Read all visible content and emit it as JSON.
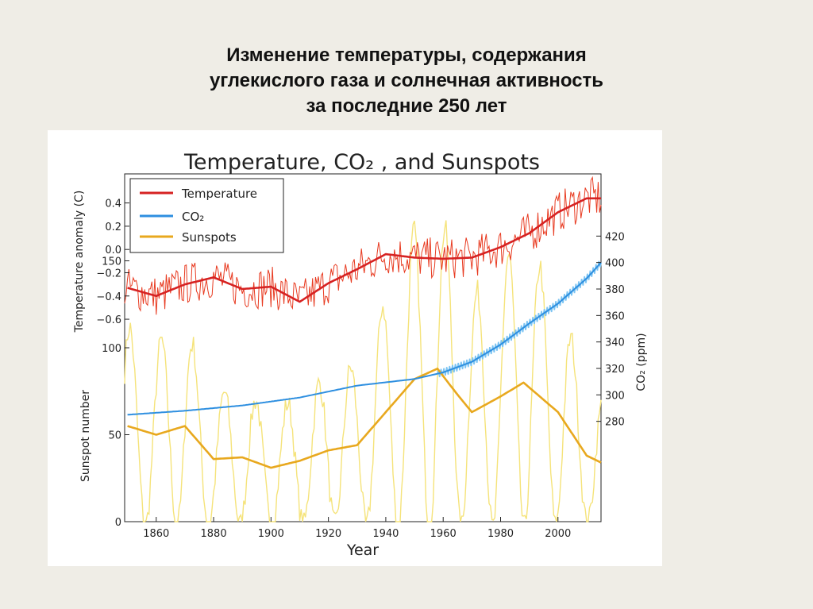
{
  "slide": {
    "title_lines": [
      "Изменение температуры, содержания",
      "углекислого газа и солнечная активность",
      "за последние 250 лет"
    ]
  },
  "chart_data": {
    "type": "line",
    "title": "Temperature, CO₂ , and Sunspots",
    "xlabel": "Year",
    "xlim": [
      1849,
      2015
    ],
    "x_ticks": [
      1860,
      1880,
      1900,
      1920,
      1940,
      1960,
      1980,
      2000
    ],
    "grid": false,
    "legend_position": "top-left",
    "legend": [
      "Temperature",
      "CO₂",
      "Sunspots"
    ],
    "axes": {
      "temperature": {
        "label": "Temperature anomaly (C)",
        "ticks": [
          "0.4",
          "0.2",
          "0.0",
          "−0.2",
          "−0.4",
          "−0.6"
        ],
        "ylim": [
          -0.9,
          0.65
        ],
        "side": "left-top"
      },
      "sunspots": {
        "label": "Sunspot number",
        "ticks": [
          "0",
          "50",
          "100",
          "150"
        ],
        "ylim": [
          0,
          200
        ],
        "side": "left-bottom"
      },
      "co2": {
        "label": "CO₂ (ppm)",
        "ticks": [
          "280",
          "300",
          "320",
          "340",
          "360",
          "380",
          "400",
          "420"
        ],
        "ylim": [
          230,
          425
        ],
        "side": "right"
      }
    },
    "colors": {
      "temperature": "#d62222",
      "temperature_raw": "#e83a20",
      "co2": "#2e8fe0",
      "co2_raw": "#7cc4f2",
      "sunspots": "#e8a81e",
      "sunspots_raw": "#f5e37a"
    },
    "series": [
      {
        "name": "Temperature",
        "axis": "temperature",
        "x": [
          1850,
          1860,
          1870,
          1880,
          1890,
          1900,
          1910,
          1920,
          1930,
          1940,
          1950,
          1960,
          1970,
          1980,
          1990,
          2000,
          2010,
          2015
        ],
        "values": [
          -0.33,
          -0.4,
          -0.3,
          -0.24,
          -0.34,
          -0.32,
          -0.45,
          -0.29,
          -0.17,
          -0.04,
          -0.07,
          -0.08,
          -0.07,
          0.02,
          0.14,
          0.32,
          0.44,
          0.44
        ]
      },
      {
        "name": "CO₂",
        "axis": "co2",
        "x": [
          1850,
          1870,
          1890,
          1910,
          1930,
          1950,
          1960,
          1970,
          1980,
          1990,
          2000,
          2010,
          2015
        ],
        "values": [
          285,
          288,
          292,
          298,
          307,
          312,
          317,
          325,
          338,
          354,
          369,
          388,
          400
        ]
      },
      {
        "name": "Sunspots",
        "axis": "sunspots",
        "x": [
          1850,
          1860,
          1870,
          1880,
          1890,
          1900,
          1910,
          1920,
          1930,
          1940,
          1950,
          1958,
          1965,
          1970,
          1980,
          1988,
          2000,
          2010,
          2015
        ],
        "values": [
          55,
          50,
          55,
          36,
          37,
          31,
          35,
          41,
          44,
          63,
          82,
          88,
          73,
          63,
          72,
          80,
          63,
          38,
          34
        ]
      }
    ]
  }
}
